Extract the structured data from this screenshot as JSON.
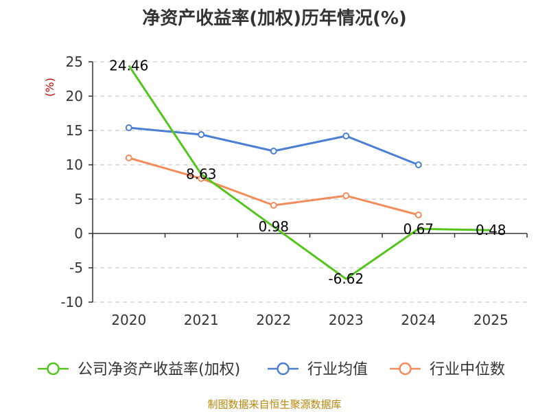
{
  "chart_data": {
    "type": "line",
    "title": "净资产收益率(加权)历年情况(%)",
    "ylabel": "(%)",
    "xlabel": "",
    "categories": [
      "2020",
      "2021",
      "2022",
      "2023",
      "2024",
      "2025"
    ],
    "ylim": [
      -10,
      25
    ],
    "yticks": [
      -10,
      -5,
      0,
      5,
      10,
      15,
      20,
      25
    ],
    "grid": true,
    "legend_position": "bottom",
    "series": [
      {
        "name": "公司净资产收益率(加权)",
        "color": "#52c41a",
        "values": [
          24.46,
          8.63,
          0.98,
          -6.62,
          0.67,
          0.48
        ],
        "labels": [
          "24.46",
          "8.63",
          "0.98",
          "-6.62",
          "0.67",
          "0.48"
        ]
      },
      {
        "name": "行业均值",
        "color": "#4a7fd4",
        "values": [
          15.4,
          14.4,
          12.0,
          14.2,
          10.0,
          null
        ]
      },
      {
        "name": "行业中位数",
        "color": "#f28c5a",
        "values": [
          11.0,
          8.0,
          4.1,
          5.5,
          2.7,
          null
        ]
      }
    ]
  },
  "source": "制图数据来自恒生聚源数据库"
}
